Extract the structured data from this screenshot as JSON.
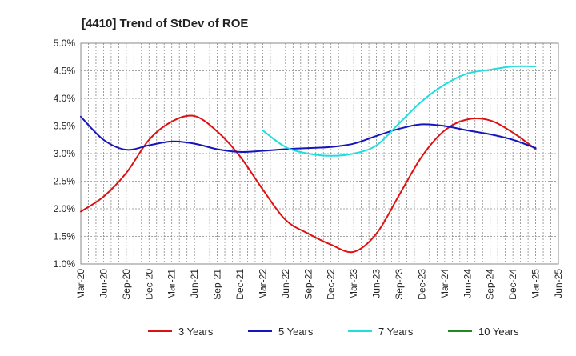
{
  "chart_data": {
    "type": "line",
    "title": "[4410]  Trend of StDev of ROE",
    "xlabel": "",
    "ylabel": "",
    "x_ticks": [
      "Mar-20",
      "Jun-20",
      "Sep-20",
      "Dec-20",
      "Mar-21",
      "Jun-21",
      "Sep-21",
      "Dec-21",
      "Mar-22",
      "Jun-22",
      "Sep-22",
      "Dec-22",
      "Mar-23",
      "Jun-23",
      "Sep-23",
      "Dec-23",
      "Mar-24",
      "Jun-24",
      "Sep-24",
      "Dec-24",
      "Mar-25",
      "Jun-25"
    ],
    "y_ticks": [
      "1.0%",
      "1.5%",
      "2.0%",
      "2.5%",
      "3.0%",
      "3.5%",
      "4.0%",
      "4.5%",
      "5.0%"
    ],
    "ylim": [
      1.0,
      5.0
    ],
    "grid": true,
    "legend_position": "bottom",
    "series": [
      {
        "name": "3 Years",
        "color": "#dd1111",
        "points": [
          [
            "Mar-20",
            1.95
          ],
          [
            "Jun-20",
            2.22
          ],
          [
            "Sep-20",
            2.65
          ],
          [
            "Dec-20",
            3.25
          ],
          [
            "Mar-21",
            3.58
          ],
          [
            "Jun-21",
            3.68
          ],
          [
            "Sep-21",
            3.4
          ],
          [
            "Dec-21",
            2.95
          ],
          [
            "Mar-22",
            2.35
          ],
          [
            "Jun-22",
            1.8
          ],
          [
            "Sep-22",
            1.55
          ],
          [
            "Dec-22",
            1.35
          ],
          [
            "Mar-23",
            1.22
          ],
          [
            "Jun-23",
            1.55
          ],
          [
            "Sep-23",
            2.25
          ],
          [
            "Dec-23",
            2.95
          ],
          [
            "Mar-24",
            3.42
          ],
          [
            "Jun-24",
            3.62
          ],
          [
            "Sep-24",
            3.6
          ],
          [
            "Dec-24",
            3.38
          ],
          [
            "Mar-25",
            3.08
          ]
        ]
      },
      {
        "name": "5 Years",
        "color": "#1515bb",
        "points": [
          [
            "Mar-20",
            3.67
          ],
          [
            "Jun-20",
            3.25
          ],
          [
            "Sep-20",
            3.07
          ],
          [
            "Dec-20",
            3.15
          ],
          [
            "Mar-21",
            3.22
          ],
          [
            "Jun-21",
            3.18
          ],
          [
            "Sep-21",
            3.08
          ],
          [
            "Dec-21",
            3.03
          ],
          [
            "Mar-22",
            3.05
          ],
          [
            "Jun-22",
            3.08
          ],
          [
            "Sep-22",
            3.1
          ],
          [
            "Dec-22",
            3.12
          ],
          [
            "Mar-23",
            3.18
          ],
          [
            "Jun-23",
            3.32
          ],
          [
            "Sep-23",
            3.45
          ],
          [
            "Dec-23",
            3.53
          ],
          [
            "Mar-24",
            3.5
          ],
          [
            "Jun-24",
            3.42
          ],
          [
            "Sep-24",
            3.35
          ],
          [
            "Dec-24",
            3.25
          ],
          [
            "Mar-25",
            3.1
          ]
        ]
      },
      {
        "name": "7 Years",
        "color": "#22dddd",
        "points": [
          [
            "Mar-22",
            3.42
          ],
          [
            "Jun-22",
            3.12
          ],
          [
            "Sep-22",
            3.0
          ],
          [
            "Dec-22",
            2.96
          ],
          [
            "Mar-23",
            3.0
          ],
          [
            "Jun-23",
            3.15
          ],
          [
            "Sep-23",
            3.55
          ],
          [
            "Dec-23",
            3.95
          ],
          [
            "Mar-24",
            4.25
          ],
          [
            "Jun-24",
            4.45
          ],
          [
            "Sep-24",
            4.52
          ],
          [
            "Dec-24",
            4.58
          ],
          [
            "Mar-25",
            4.58
          ]
        ]
      },
      {
        "name": "10 Years",
        "color": "#228822",
        "points": []
      }
    ]
  }
}
